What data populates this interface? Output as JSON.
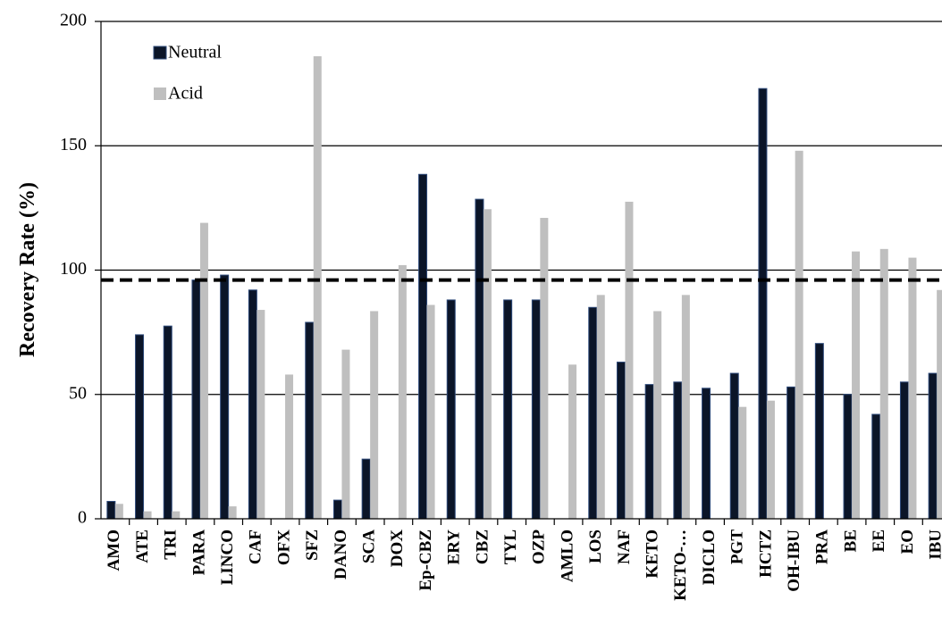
{
  "chart_data": {
    "type": "bar",
    "y_label": "Recovery Rate (%)",
    "categories": [
      "AMO",
      "ATE",
      "TRI",
      "PARA",
      "LINCO",
      "CAF",
      "OFX",
      "SFZ",
      "DANO",
      "SCA",
      "DOX",
      "Ep-CBZ",
      "ERY",
      "CBZ",
      "TYL",
      "OZP",
      "AMLO",
      "LOS",
      "NAF",
      "KETO",
      "KETO-…",
      "DICLO",
      "PGT",
      "HCTZ",
      "OH-IBU",
      "PRA",
      "BE",
      "EE",
      "EO",
      "IBU"
    ],
    "series": [
      {
        "name": "Neutral",
        "color": "#0b1528",
        "values": [
          7,
          74,
          77.5,
          96,
          98,
          92,
          0,
          79,
          7.5,
          24,
          0,
          138.5,
          88,
          128.5,
          88,
          88,
          0,
          85,
          63,
          54,
          55,
          52.5,
          58.5,
          173,
          53,
          70.5,
          50,
          42,
          55,
          58.5
        ]
      },
      {
        "name": "Acid",
        "color": "#bfbfbf",
        "values": [
          6,
          3,
          3,
          119,
          5,
          84,
          58,
          186,
          68,
          83.5,
          102,
          86,
          0,
          124.5,
          0,
          121,
          62,
          90,
          127.5,
          83.5,
          90,
          0,
          45,
          47.5,
          148,
          0,
          107.5,
          108.5,
          105,
          92
        ]
      }
    ],
    "reference_line": 96,
    "ylim": [
      0,
      200
    ],
    "yticks": [
      0,
      50,
      100,
      150,
      200
    ],
    "grid": true
  }
}
